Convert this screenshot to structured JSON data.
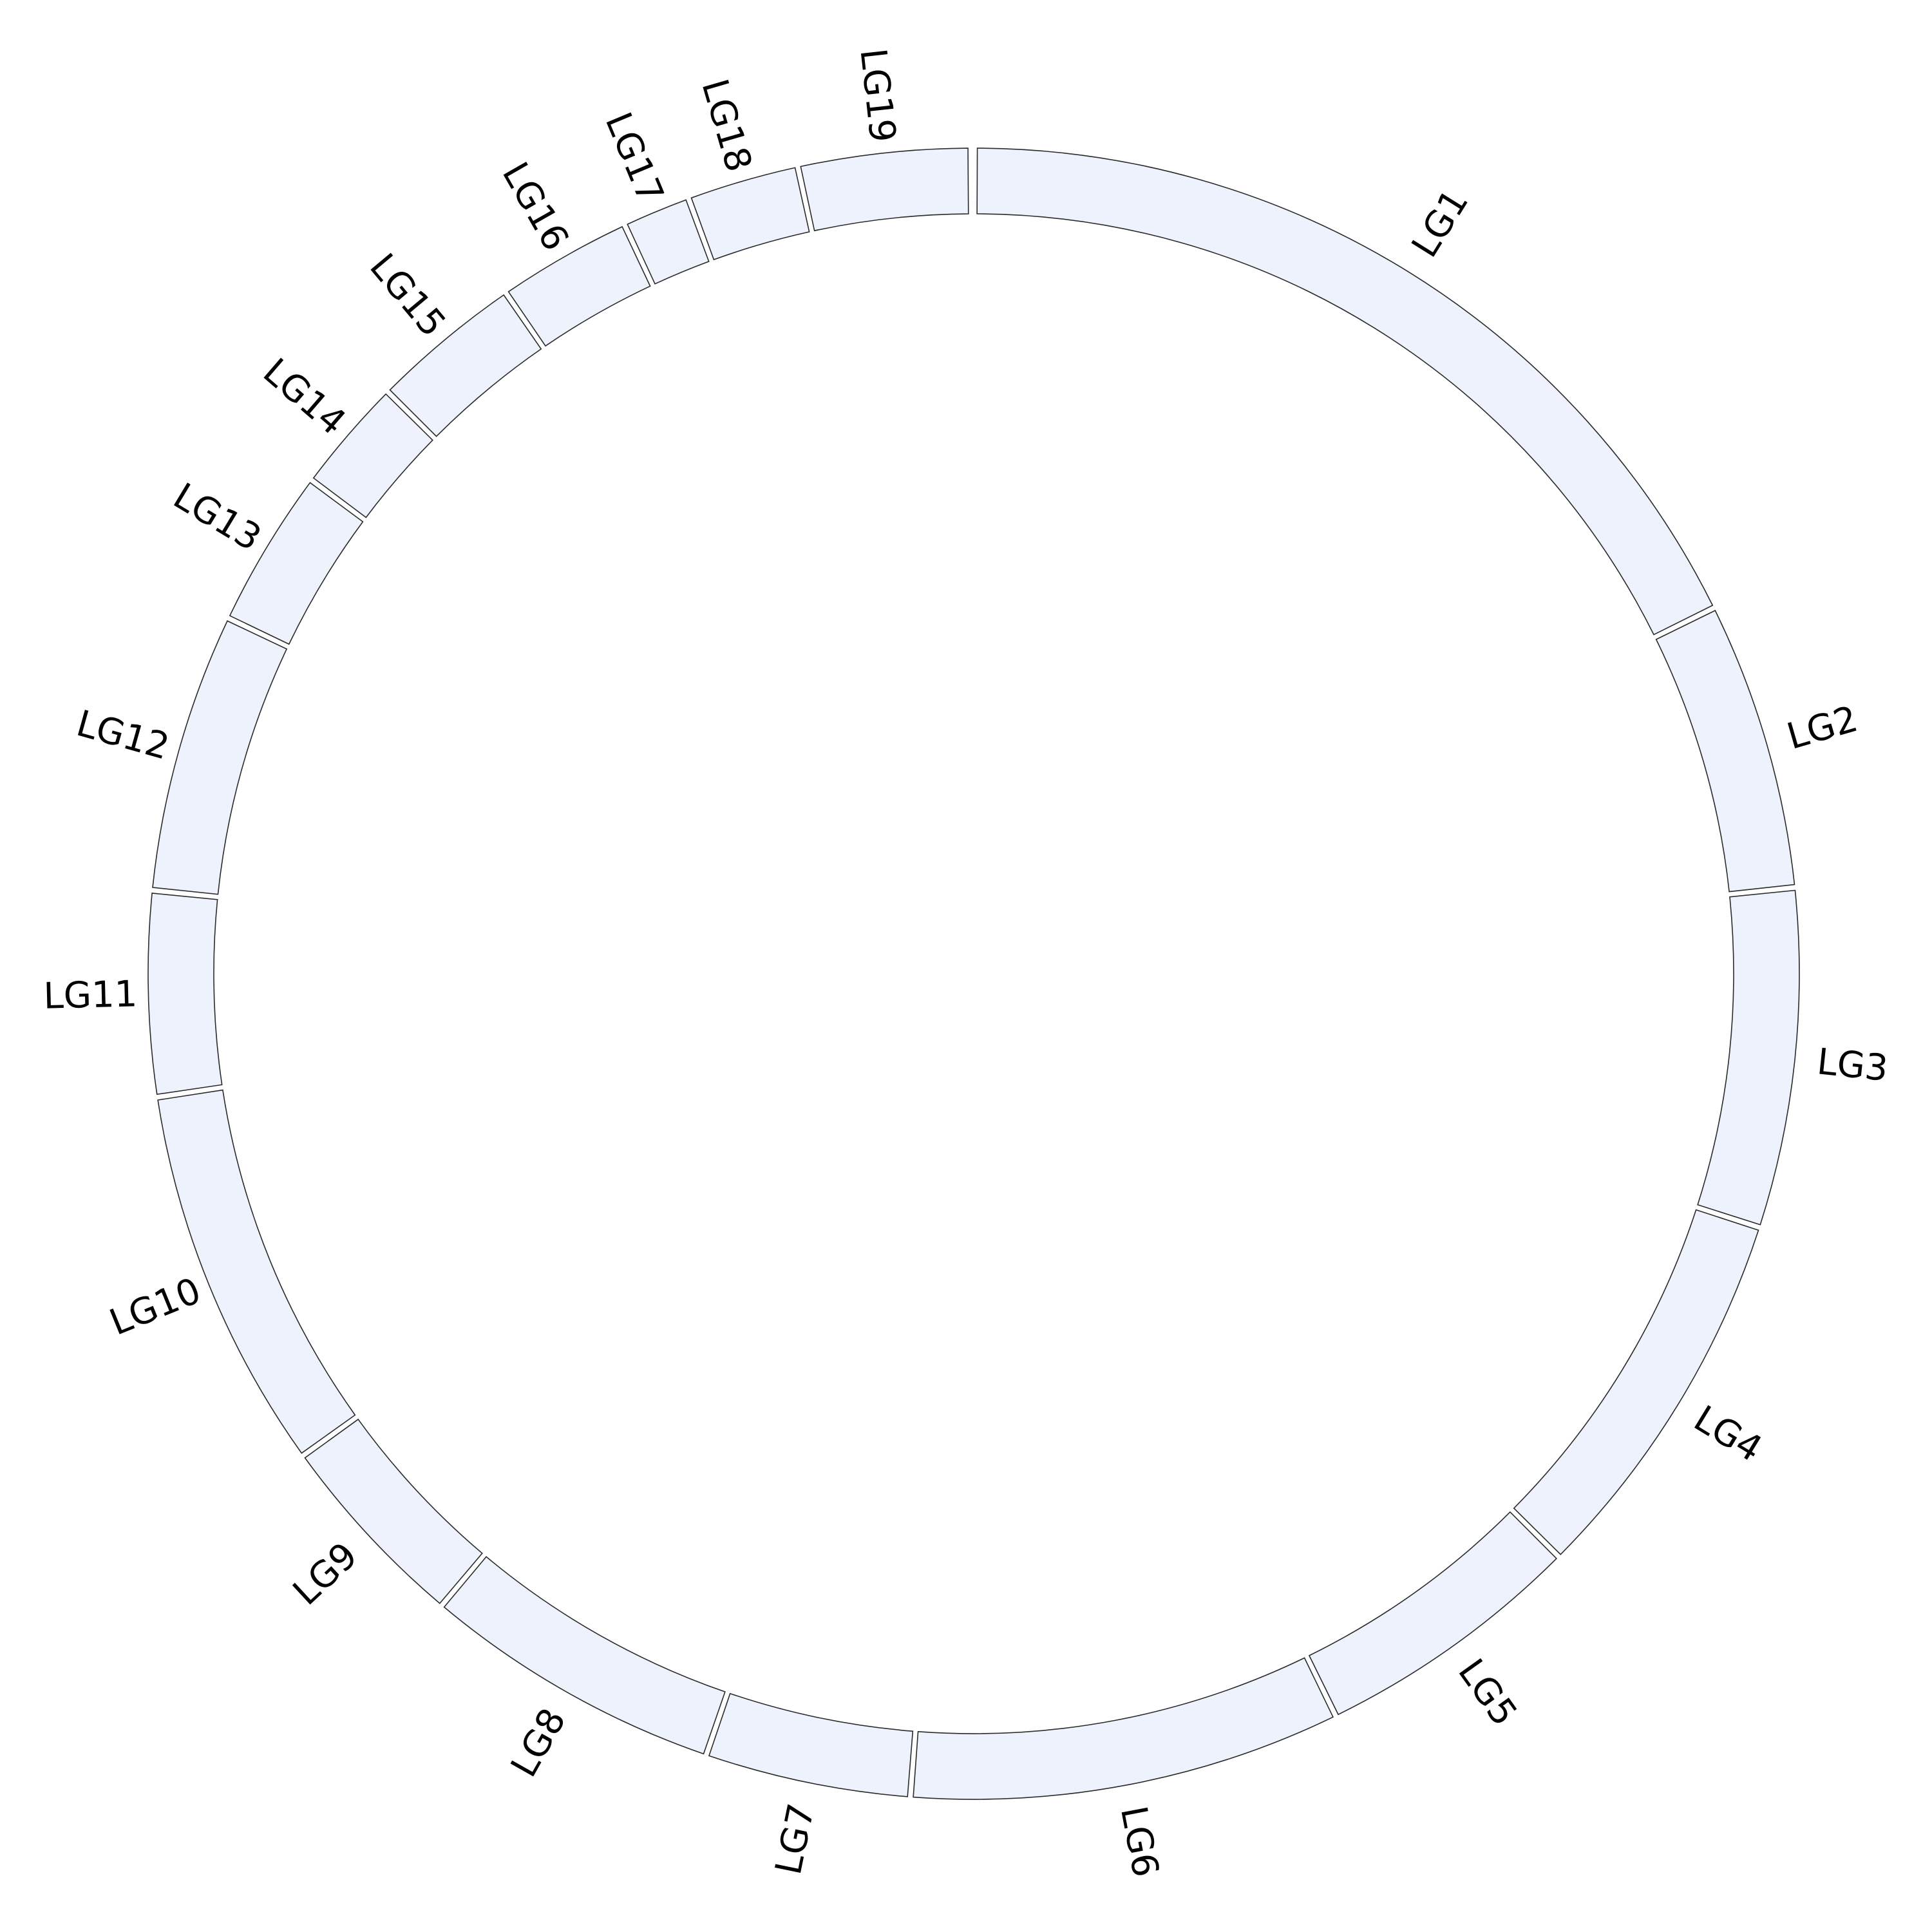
{
  "figure": {
    "type": "circular-ideogram",
    "fill_color": "#edf2fd",
    "stroke_color": "#2b2b2b",
    "label_color": "#000000",
    "segments": [
      {
        "label": "LG1",
        "start_deg": 0.25,
        "end_deg": 63.5
      },
      {
        "label": "LG2",
        "start_deg": 63.9,
        "end_deg": 83.8
      },
      {
        "label": "LG3",
        "start_deg": 84.2,
        "end_deg": 107.7
      },
      {
        "label": "LG4",
        "start_deg": 108.1,
        "end_deg": 134.7
      },
      {
        "label": "LG5",
        "start_deg": 135.1,
        "end_deg": 153.8
      },
      {
        "label": "LG6",
        "start_deg": 154.2,
        "end_deg": 184.2
      },
      {
        "label": "LG7",
        "start_deg": 184.6,
        "end_deg": 198.7
      },
      {
        "label": "LG8",
        "start_deg": 199.1,
        "end_deg": 219.9
      },
      {
        "label": "LG9",
        "start_deg": 220.3,
        "end_deg": 234.1
      },
      {
        "label": "LG10",
        "start_deg": 234.5,
        "end_deg": 261.2
      },
      {
        "label": "LG11",
        "start_deg": 261.6,
        "end_deg": 275.6
      },
      {
        "label": "LG12",
        "start_deg": 276.0,
        "end_deg": 295.3
      },
      {
        "label": "LG13",
        "start_deg": 295.7,
        "end_deg": 306.5
      },
      {
        "label": "LG14",
        "start_deg": 306.9,
        "end_deg": 314.6
      },
      {
        "label": "LG15",
        "start_deg": 315.0,
        "end_deg": 325.3
      },
      {
        "label": "LG16",
        "start_deg": 325.7,
        "end_deg": 334.8
      },
      {
        "label": "LG17",
        "start_deg": 335.2,
        "end_deg": 339.6
      },
      {
        "label": "LG18",
        "start_deg": 340.0,
        "end_deg": 347.5
      },
      {
        "label": "LG19",
        "start_deg": 347.9,
        "end_deg": 359.6
      }
    ]
  }
}
